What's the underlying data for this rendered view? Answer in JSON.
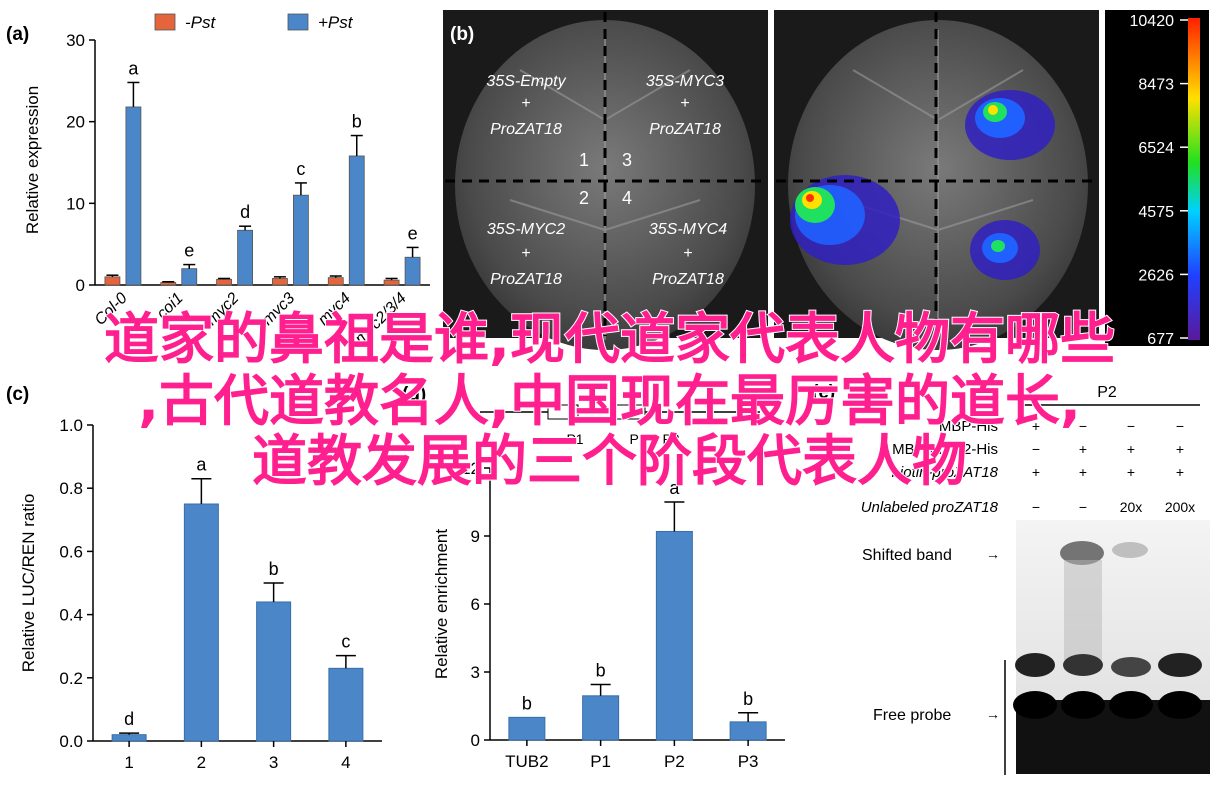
{
  "panel_labels": {
    "a": "(a)",
    "b": "(b)",
    "c": "(c)",
    "d": "(d)",
    "e": "(e)"
  },
  "colors": {
    "pst_minus": "#e4643c",
    "pst_plus": "#4a86c8",
    "bar": "#4a86c8",
    "overlay_text": "#ff1f8e"
  },
  "overlay": {
    "line1": "道家的鼻祖是谁,现代道家代表人物有哪些",
    "line2": ",古代道教名人,中国现在最厉害的道长,",
    "line3": "道教发展的三个阶段代表人物"
  },
  "chart_data": [
    {
      "id": "a",
      "type": "bar",
      "ylabel": "Relative expression",
      "ylim": [
        0,
        30
      ],
      "yticks": [
        0,
        10,
        20,
        30
      ],
      "categories": [
        "Col-0",
        "coi1",
        "myc2",
        "myc3",
        "myc4",
        "myc2/3/4"
      ],
      "legend": [
        "-Pst",
        "+Pst"
      ],
      "legend_position": "top",
      "series": [
        {
          "name": "-Pst",
          "values": [
            1.0,
            0.3,
            0.7,
            0.8,
            0.9,
            0.6
          ],
          "errors": [
            0.2,
            0.1,
            0.1,
            0.2,
            0.2,
            0.2
          ]
        },
        {
          "name": "+Pst",
          "values": [
            21.8,
            2.0,
            6.7,
            11.0,
            15.8,
            3.4
          ],
          "errors": [
            3.0,
            0.5,
            0.5,
            1.5,
            2.5,
            1.2
          ]
        }
      ],
      "letters": [
        "a",
        "e",
        "d",
        "c",
        "b",
        "e"
      ]
    },
    {
      "id": "b",
      "type": "image",
      "quadrants": [
        {
          "construct": "35S-Empty",
          "promoter": "ProZAT18",
          "number": "1"
        },
        {
          "construct": "35S-MYC3",
          "promoter": "ProZAT18",
          "number": "3"
        },
        {
          "construct": "35S-MYC2",
          "promoter": "ProZAT18",
          "number": "2"
        },
        {
          "construct": "35S-MYC4",
          "promoter": "ProZAT18",
          "number": "4"
        }
      ],
      "plus": "+",
      "colorbar_ticks": [
        "10420",
        "8473",
        "6524",
        "4575",
        "2626",
        "677"
      ]
    },
    {
      "id": "c",
      "type": "bar",
      "ylabel": "Relative LUC/REN ratio",
      "ylim": [
        0,
        1.0
      ],
      "yticks": [
        "0.0",
        "0.2",
        "0.4",
        "0.6",
        "0.8",
        "1.0"
      ],
      "categories": [
        "1",
        "2",
        "3",
        "4"
      ],
      "values": [
        0.02,
        0.75,
        0.44,
        0.23
      ],
      "errors": [
        0.005,
        0.08,
        0.06,
        0.04
      ],
      "letters": [
        "d",
        "a",
        "b",
        "c"
      ]
    },
    {
      "id": "d",
      "type": "bar",
      "ylabel": "Relative enrichment",
      "ylim": [
        0,
        12
      ],
      "yticks": [
        "0",
        "3",
        "6",
        "9",
        "12"
      ],
      "categories": [
        "TUB2",
        "P1",
        "P2",
        "P3"
      ],
      "values": [
        1.0,
        1.95,
        9.2,
        0.8
      ],
      "errors": [
        0,
        0.5,
        1.3,
        0.4
      ],
      "letters": [
        "b",
        "b",
        "a",
        "b"
      ],
      "schematic_labels": [
        "P1",
        "P2",
        "P3"
      ]
    },
    {
      "id": "e",
      "type": "table",
      "probe_label": "P2",
      "rows": [
        {
          "label": "MBP-His",
          "signs": [
            "+",
            "−",
            "−",
            "−"
          ]
        },
        {
          "label": "MBP-MYC2-His",
          "signs": [
            "−",
            "+",
            "+",
            "+"
          ]
        },
        {
          "label": "biotin-proZAT18",
          "signs": [
            "+",
            "+",
            "+",
            "+"
          ]
        },
        {
          "label": "Unlabeled proZAT18",
          "signs": [
            "−",
            "−",
            "20x",
            "200x"
          ]
        }
      ],
      "band_labels": [
        "Shifted band",
        "Free probe"
      ]
    }
  ]
}
